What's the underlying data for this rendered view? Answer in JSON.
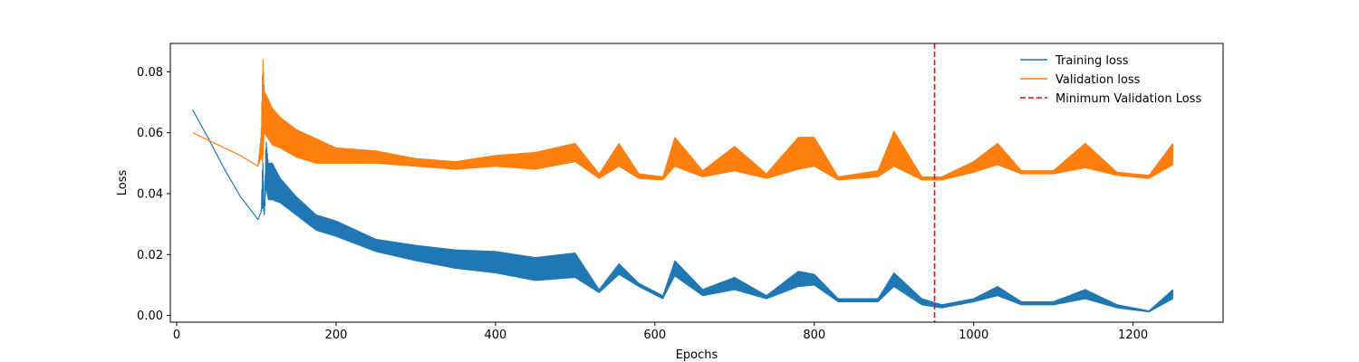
{
  "chart_data": {
    "type": "line",
    "title": "",
    "xlabel": "Epochs",
    "ylabel": "Loss",
    "xlim": [
      -8,
      1313
    ],
    "ylim": [
      -0.0022,
      0.0893
    ],
    "xticks": [
      0,
      200,
      400,
      600,
      800,
      1000,
      1200
    ],
    "yticks": [
      0.0,
      0.02,
      0.04,
      0.06,
      0.08
    ],
    "xtick_labels": [
      "0",
      "200",
      "400",
      "600",
      "800",
      "1000",
      "1200"
    ],
    "ytick_labels": [
      "0.00",
      "0.02",
      "0.04",
      "0.06",
      "0.08"
    ],
    "grid": false,
    "legend_position": "top-right",
    "series": [
      {
        "name": "Training loss",
        "color": "#1f77b4",
        "style": "oscillating band",
        "x": [
          20,
          40,
          60,
          80,
          102,
          106,
          108,
          110,
          112,
          115,
          120,
          130,
          150,
          175,
          200,
          250,
          300,
          350,
          400,
          450,
          500,
          530,
          555,
          580,
          610,
          625,
          660,
          700,
          740,
          780,
          800,
          830,
          880,
          900,
          935,
          960,
          1000,
          1030,
          1060,
          1100,
          1140,
          1180,
          1220,
          1250
        ],
        "lower": [
          0.0675,
          0.058,
          0.048,
          0.039,
          0.0315,
          0.034,
          0.036,
          0.033,
          0.042,
          0.038,
          0.038,
          0.037,
          0.033,
          0.028,
          0.026,
          0.021,
          0.018,
          0.0155,
          0.014,
          0.0115,
          0.0125,
          0.0075,
          0.0135,
          0.0095,
          0.0055,
          0.013,
          0.0065,
          0.0085,
          0.0055,
          0.0095,
          0.01,
          0.0045,
          0.0045,
          0.0095,
          0.0035,
          0.0025,
          0.0045,
          0.0065,
          0.0035,
          0.0035,
          0.0055,
          0.0025,
          0.0012,
          0.0055
        ],
        "upper": [
          0.0675,
          0.058,
          0.048,
          0.039,
          0.0315,
          0.034,
          0.052,
          0.034,
          0.058,
          0.05,
          0.05,
          0.045,
          0.039,
          0.033,
          0.031,
          0.025,
          0.023,
          0.0215,
          0.021,
          0.019,
          0.0205,
          0.0085,
          0.017,
          0.0105,
          0.0065,
          0.018,
          0.0085,
          0.0125,
          0.0065,
          0.0145,
          0.0135,
          0.0055,
          0.0055,
          0.014,
          0.0055,
          0.0035,
          0.0055,
          0.0095,
          0.0045,
          0.0045,
          0.0085,
          0.0035,
          0.0015,
          0.0085
        ]
      },
      {
        "name": "Validation loss",
        "color": "#ff7f0e",
        "style": "oscillating band",
        "x": [
          20,
          40,
          60,
          80,
          102,
          106,
          108,
          110,
          115,
          120,
          130,
          150,
          175,
          200,
          250,
          300,
          350,
          400,
          450,
          500,
          530,
          555,
          580,
          610,
          625,
          660,
          700,
          740,
          780,
          800,
          830,
          880,
          900,
          935,
          960,
          1000,
          1030,
          1060,
          1100,
          1140,
          1180,
          1220,
          1250
        ],
        "lower": [
          0.06,
          0.0575,
          0.055,
          0.0525,
          0.049,
          0.052,
          0.05,
          0.06,
          0.058,
          0.056,
          0.055,
          0.052,
          0.05,
          0.05,
          0.05,
          0.049,
          0.048,
          0.049,
          0.048,
          0.0505,
          0.045,
          0.049,
          0.045,
          0.0445,
          0.049,
          0.0455,
          0.0475,
          0.045,
          0.048,
          0.049,
          0.0445,
          0.0455,
          0.049,
          0.0445,
          0.0445,
          0.047,
          0.0495,
          0.0465,
          0.0465,
          0.0485,
          0.046,
          0.045,
          0.0495
        ],
        "upper": [
          0.06,
          0.0575,
          0.055,
          0.0525,
          0.049,
          0.06,
          0.085,
          0.0735,
          0.071,
          0.068,
          0.065,
          0.061,
          0.058,
          0.055,
          0.054,
          0.0515,
          0.0505,
          0.0525,
          0.0535,
          0.0565,
          0.0465,
          0.0565,
          0.0465,
          0.0455,
          0.0585,
          0.0475,
          0.0555,
          0.0465,
          0.0585,
          0.0585,
          0.0455,
          0.0475,
          0.0605,
          0.0455,
          0.0455,
          0.0505,
          0.0565,
          0.0475,
          0.0475,
          0.0565,
          0.047,
          0.046,
          0.0565
        ]
      },
      {
        "name": "Minimum Validation Loss",
        "color": "#ff0000",
        "style": "dashed vertical line",
        "x": 951
      }
    ]
  }
}
